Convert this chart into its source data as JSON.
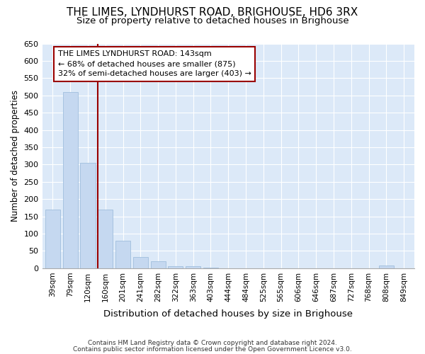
{
  "title1": "THE LIMES, LYNDHURST ROAD, BRIGHOUSE, HD6 3RX",
  "title2": "Size of property relative to detached houses in Brighouse",
  "xlabel": "Distribution of detached houses by size in Brighouse",
  "ylabel": "Number of detached properties",
  "categories": [
    "39sqm",
    "79sqm",
    "120sqm",
    "160sqm",
    "201sqm",
    "241sqm",
    "282sqm",
    "322sqm",
    "363sqm",
    "403sqm",
    "444sqm",
    "484sqm",
    "525sqm",
    "565sqm",
    "606sqm",
    "646sqm",
    "687sqm",
    "727sqm",
    "768sqm",
    "808sqm",
    "849sqm"
  ],
  "values": [
    170,
    510,
    305,
    170,
    80,
    33,
    20,
    5,
    5,
    2,
    0,
    0,
    0,
    0,
    0,
    0,
    0,
    0,
    0,
    8,
    0
  ],
  "bar_color": "#c5d8f0",
  "bar_edge_color": "#a0bedd",
  "vline_color": "#990000",
  "annotation_text": "THE LIMES LYNDHURST ROAD: 143sqm\n← 68% of detached houses are smaller (875)\n32% of semi-detached houses are larger (403) →",
  "annotation_box_color": "white",
  "annotation_box_edge_color": "#990000",
  "ylim": [
    0,
    650
  ],
  "yticks": [
    0,
    50,
    100,
    150,
    200,
    250,
    300,
    350,
    400,
    450,
    500,
    550,
    600,
    650
  ],
  "footnote1": "Contains HM Land Registry data © Crown copyright and database right 2024.",
  "footnote2": "Contains public sector information licensed under the Open Government Licence v3.0.",
  "fig_bg_color": "#ffffff",
  "plot_bg_color": "#dce9f8",
  "grid_color": "#ffffff",
  "title1_fontsize": 11,
  "title2_fontsize": 9.5
}
